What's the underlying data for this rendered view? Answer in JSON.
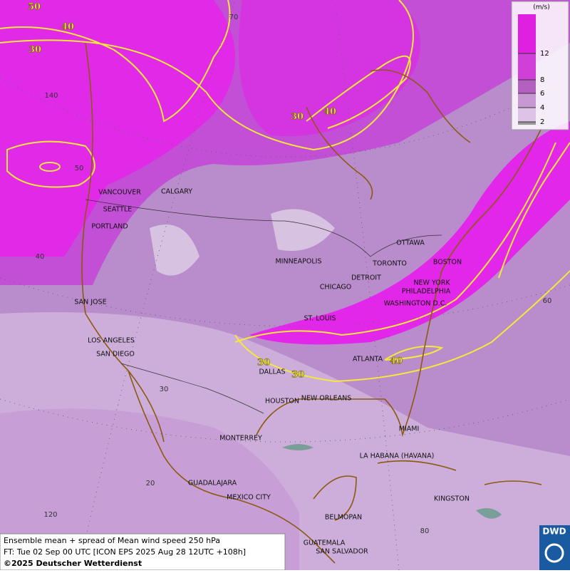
{
  "map": {
    "cities": [
      "VANCOUVER",
      "CALGARY",
      "SEATTLE",
      "PORTLAND",
      "MINNEAPOLIS",
      "TORONTO",
      "OTTAWA",
      "BOSTON",
      "DETROIT",
      "CHICAGO",
      "NEW YORK",
      "PHILADELPHIA",
      "WASHINGTON D.C.",
      "SAN JOSE",
      "ST. LOUIS",
      "LOS ANGELES",
      "SAN DIEGO",
      "ATLANTA",
      "DALLAS",
      "HOUSTON",
      "NEW ORLEANS",
      "MIAMI",
      "MONTERREY",
      "LA HABANA (HAVANA)",
      "GUADALAJARA",
      "MEXICO CITY",
      "KINGSTON",
      "BELMOPAN",
      "GUATEMALA",
      "SAN SALVADOR"
    ],
    "contour_labels": [
      "50",
      "40",
      "30",
      "30",
      "40",
      "30",
      "30",
      "40"
    ],
    "grid_labels": [
      "70",
      "140",
      "50",
      "40",
      "60",
      "30",
      "20",
      "120",
      "80"
    ]
  },
  "legend": {
    "unit": "(m/s)",
    "ticks": [
      "12",
      "8",
      "6",
      "4",
      "2"
    ]
  },
  "caption": [
    "Ensemble mean + spread of Mean wind speed 250 hPa",
    "FT: Tue 02 Sep 00 UTC [ICON EPS 2025 Aug 28 12UTC +108h]",
    "©2025 Deutscher Wetterdienst"
  ],
  "logo": "DWD"
}
